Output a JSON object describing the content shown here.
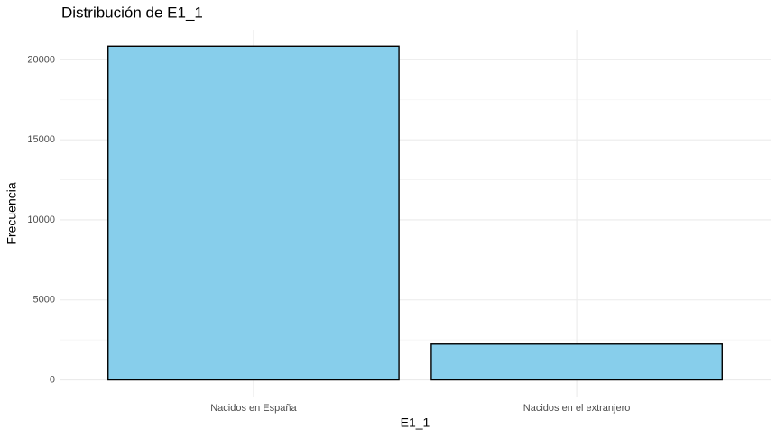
{
  "chart_data": {
    "type": "bar",
    "title": "Distribución de E1_1",
    "x_label": "E1_1",
    "y_label": "Frecuencia",
    "categories": [
      "Nacidos en España",
      "Nacidos en el extranjero"
    ],
    "values": [
      20850,
      2240
    ],
    "color": "#87ceeb",
    "edge_color": "#000000",
    "ylim": [
      -1040,
      21880
    ],
    "yticks": [
      0,
      5000,
      10000,
      15000,
      20000
    ],
    "minor_yticks": [
      2500,
      7500,
      12500,
      17500
    ],
    "grid": true
  }
}
